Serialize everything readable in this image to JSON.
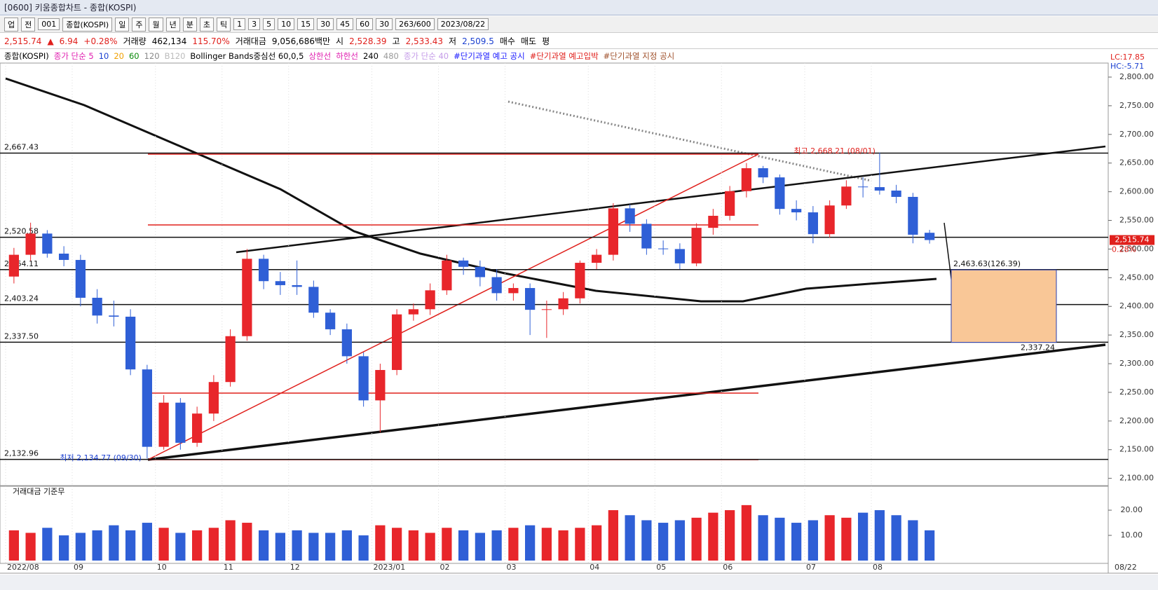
{
  "window": {
    "title": "[0600] 키움종합차트 - 종합(KOSPI)"
  },
  "toolbar": [
    "업",
    "전",
    "001",
    "종합(KOSPI)",
    "일",
    "주",
    "월",
    "년",
    "분",
    "초",
    "틱",
    "1",
    "3",
    "5",
    "10",
    "15",
    "30",
    "45",
    "60",
    "30",
    "263/600",
    "2023/08/22"
  ],
  "quote": [
    {
      "text": "2,515.74",
      "color": "#e0201c"
    },
    {
      "text": "▲",
      "color": "#e0201c"
    },
    {
      "text": "6.94",
      "color": "#e0201c"
    },
    {
      "text": "+0.28%",
      "color": "#e0201c"
    },
    {
      "text": "거래량",
      "color": "#000000"
    },
    {
      "text": "462,134",
      "color": "#000000"
    },
    {
      "text": "115.70%",
      "color": "#e0201c"
    },
    {
      "text": "거래대금",
      "color": "#000000"
    },
    {
      "text": "9,056,686백만",
      "color": "#000000"
    },
    {
      "text": "시",
      "color": "#000000"
    },
    {
      "text": "2,528.39",
      "color": "#e0201c"
    },
    {
      "text": "고",
      "color": "#000000"
    },
    {
      "text": "2,533.43",
      "color": "#e0201c"
    },
    {
      "text": "저",
      "color": "#000000"
    },
    {
      "text": "2,509.5",
      "color": "#1a3fd0"
    },
    {
      "text": "매수",
      "color": "#000000"
    },
    {
      "text": "매도",
      "color": "#000000"
    },
    {
      "text": "평",
      "color": "#000000"
    }
  ],
  "legend": [
    {
      "text": "종합(KOSPI)",
      "color": "#000000"
    },
    {
      "text": "종가 단순 5",
      "color": "#e01fb0"
    },
    {
      "text": "10",
      "color": "#1a3fd0"
    },
    {
      "text": "20",
      "color": "#f0a000"
    },
    {
      "text": "60",
      "color": "#0a8a0a"
    },
    {
      "text": "120",
      "color": "#888888"
    },
    {
      "text": "B120",
      "color": "#bbbbbb"
    },
    {
      "text": "Bollinger Bands중심선 60,0,5",
      "color": "#000000"
    },
    {
      "text": "상한선",
      "color": "#e01fb0"
    },
    {
      "text": "하한선",
      "color": "#e01fb0"
    },
    {
      "text": "240",
      "color": "#000000"
    },
    {
      "text": "480",
      "color": "#999999"
    },
    {
      "text": "종가 단순 40",
      "color": "#c59ce8"
    },
    {
      "text": "#단기과열 예고 공시",
      "color": "#1a1aff"
    },
    {
      "text": "#단기과열 예고입박",
      "color": "#e0201c"
    },
    {
      "text": "#단기과열 지정 공시",
      "color": "#a0522d"
    }
  ],
  "chart_data": [
    {
      "type": "candlestick",
      "title": "종합(KOSPI)",
      "up_color": "#e8262b",
      "down_color": "#2f5fd6",
      "categories": [
        "2022/08",
        null,
        null,
        null,
        "09",
        null,
        null,
        null,
        null,
        "10",
        null,
        null,
        null,
        "11",
        null,
        null,
        null,
        "12",
        null,
        null,
        null,
        null,
        "2023/01",
        null,
        null,
        null,
        "02",
        null,
        null,
        null,
        "03",
        null,
        null,
        null,
        null,
        "04",
        null,
        null,
        null,
        "05",
        null,
        null,
        null,
        "06",
        null,
        null,
        null,
        null,
        "07",
        null,
        null,
        null,
        "08",
        null,
        null,
        null
      ],
      "last_date": "08/22",
      "open": [
        2452,
        2490,
        2527,
        2492,
        2481,
        2415,
        2384,
        2382,
        2290,
        2155,
        2232,
        2162,
        2213,
        2268,
        2348,
        2483,
        2444,
        2437,
        2434,
        2389,
        2360,
        2313,
        2236,
        2289,
        2386,
        2395,
        2428,
        2480,
        2469,
        2451,
        2423,
        2432,
        2394,
        2395,
        2414,
        2476,
        2490,
        2571,
        2544,
        2501,
        2500,
        2475,
        2537,
        2558,
        2601,
        2641,
        2625,
        2570,
        2564,
        2526,
        2576,
        2609,
        2608,
        2602,
        2591,
        2528.39
      ],
      "high": [
        2502,
        2546,
        2533,
        2505,
        2490,
        2430,
        2410,
        2395,
        2298,
        2245,
        2240,
        2225,
        2280,
        2360,
        2500,
        2490,
        2460,
        2480,
        2445,
        2395,
        2370,
        2320,
        2300,
        2395,
        2405,
        2440,
        2490,
        2485,
        2480,
        2465,
        2440,
        2440,
        2410,
        2425,
        2480,
        2500,
        2580,
        2578,
        2552,
        2515,
        2510,
        2545,
        2570,
        2610,
        2650,
        2645,
        2630,
        2585,
        2575,
        2585,
        2620,
        2625,
        2668.21,
        2612,
        2598,
        2533.43
      ],
      "low": [
        2440,
        2480,
        2485,
        2470,
        2400,
        2370,
        2365,
        2280,
        2134.77,
        2150,
        2150,
        2155,
        2200,
        2260,
        2340,
        2430,
        2420,
        2420,
        2380,
        2350,
        2300,
        2225,
        2180,
        2280,
        2375,
        2385,
        2420,
        2455,
        2435,
        2410,
        2410,
        2350,
        2345,
        2385,
        2405,
        2465,
        2480,
        2530,
        2490,
        2490,
        2465,
        2470,
        2525,
        2550,
        2590,
        2615,
        2560,
        2550,
        2510,
        2520,
        2570,
        2590,
        2595,
        2580,
        2510,
        2509.5
      ],
      "close": [
        2490,
        2527,
        2492,
        2481,
        2415,
        2384,
        2382,
        2290,
        2155,
        2232,
        2162,
        2213,
        2268,
        2348,
        2483,
        2444,
        2437,
        2434,
        2389,
        2360,
        2313,
        2236,
        2289,
        2386,
        2395,
        2428,
        2480,
        2469,
        2451,
        2423,
        2432,
        2394,
        2395,
        2414,
        2476,
        2490,
        2571,
        2544,
        2501,
        2500,
        2475,
        2537,
        2558,
        2601,
        2641,
        2625,
        2570,
        2564,
        2526,
        2576,
        2609,
        2608,
        2602,
        2591,
        2525,
        2515.74
      ],
      "ylim": [
        2091,
        2822
      ],
      "yticks": [
        {
          "value": 2100,
          "label": "2,100.00"
        },
        {
          "value": 2150,
          "label": "2,150.00"
        },
        {
          "value": 2200,
          "label": "2,200.00"
        },
        {
          "value": 2250,
          "label": "2,250.00"
        },
        {
          "value": 2300,
          "label": "2,300.00"
        },
        {
          "value": 2350,
          "label": "2,350.00"
        },
        {
          "value": 2400,
          "label": "2,400.00"
        },
        {
          "value": 2450,
          "label": "2,450.00"
        },
        {
          "value": 2500,
          "label": "2,500.00"
        },
        {
          "value": 2550,
          "label": "2,550.00"
        },
        {
          "value": 2600,
          "label": "2,600.00"
        },
        {
          "value": 2650,
          "label": "2,650.00"
        },
        {
          "value": 2700,
          "label": "2,700.00"
        },
        {
          "value": 2750,
          "label": "2,750.00"
        },
        {
          "value": 2800,
          "label": "2,800.00"
        }
      ],
      "levels": [
        {
          "value": 2667.43,
          "label": "2,667.43"
        },
        {
          "value": 2520.58,
          "label": "2,520.58"
        },
        {
          "value": 2464.11,
          "label": "2,464.11"
        },
        {
          "value": 2403.24,
          "label": "2,403.24"
        },
        {
          "value": 2337.5,
          "label": "2,337.50"
        },
        {
          "value": 2132.96,
          "label": "2,132.96"
        }
      ],
      "annotations": {
        "high": "최고 2,668.21 (08/01)",
        "low": "최저 2,134.77 (09/30)"
      },
      "box": {
        "top": {
          "value": 2463.63,
          "label": "2,463.63(126.39)"
        },
        "bottom": {
          "value": 2337.24,
          "label": "2,337.24"
        }
      },
      "axis_info": [
        "LC:17.85",
        "HC:-5.71"
      ],
      "current": {
        "value": 2515.74,
        "label": "2,515.74",
        "change": "0.28%"
      }
    },
    {
      "type": "bar",
      "title": "거래대금 기준무",
      "values": [
        12,
        11,
        13,
        10,
        11,
        12,
        14,
        12,
        15,
        13,
        11,
        12,
        13,
        16,
        15,
        12,
        11,
        12,
        11,
        11,
        12,
        10,
        14,
        13,
        12,
        11,
        13,
        12,
        11,
        12,
        13,
        14,
        13,
        12,
        13,
        14,
        20,
        18,
        16,
        15,
        16,
        17,
        19,
        20,
        22,
        18,
        17,
        15,
        16,
        18,
        17,
        19,
        20,
        18,
        16,
        12
      ],
      "ylim": [
        0,
        27.8
      ],
      "yticks": [
        {
          "value": 10,
          "label": "10.00"
        },
        {
          "value": 20,
          "label": "20.00"
        }
      ]
    }
  ]
}
